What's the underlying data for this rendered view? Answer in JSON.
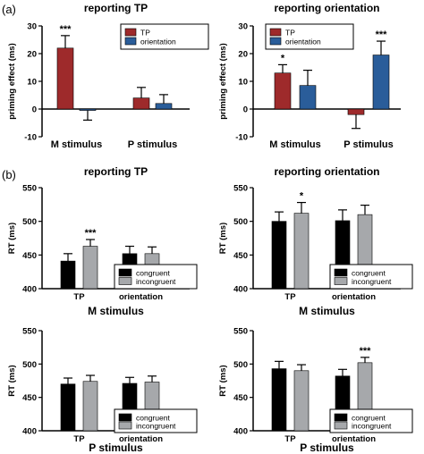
{
  "panel_labels": [
    "(a)",
    "(b)"
  ],
  "colors": {
    "TP": "#9e2a2b",
    "orientation": "#2a5d9a",
    "congruent": "#000000",
    "incongruent": "#a6a8ab",
    "axis": "#000000"
  },
  "chart_data": [
    {
      "id": "a-left",
      "type": "bar",
      "title": "reporting TP",
      "ylabel": "priming effect (ms)",
      "xlabel": "",
      "ylim": [
        -10,
        30
      ],
      "yticks": [
        -10,
        0,
        10,
        20,
        30
      ],
      "categories": [
        "M stimulus",
        "P stimulus"
      ],
      "series": [
        {
          "name": "TP",
          "color_key": "TP",
          "values": [
            22,
            4
          ],
          "errors": [
            4.5,
            3.8
          ]
        },
        {
          "name": "orientation",
          "color_key": "orientation",
          "values": [
            -0.5,
            2
          ],
          "errors": [
            3.5,
            3.2
          ]
        }
      ],
      "annotations": [
        {
          "category": 0,
          "series": 0,
          "text": "***"
        }
      ],
      "legend": "top-right",
      "grid": false
    },
    {
      "id": "a-right",
      "type": "bar",
      "title": "reporting orientation",
      "ylabel": "priming effect (ms)",
      "xlabel": "",
      "ylim": [
        -10,
        30
      ],
      "yticks": [
        -10,
        0,
        10,
        20,
        30
      ],
      "categories": [
        "M stimulus",
        "P stimulus"
      ],
      "series": [
        {
          "name": "TP",
          "color_key": "TP",
          "values": [
            13,
            -2
          ],
          "errors": [
            3,
            5
          ]
        },
        {
          "name": "orientation",
          "color_key": "orientation",
          "values": [
            8.5,
            19.5
          ],
          "errors": [
            5.5,
            5
          ]
        }
      ],
      "annotations": [
        {
          "category": 0,
          "series": 0,
          "text": "*"
        },
        {
          "category": 1,
          "series": 1,
          "text": "***"
        }
      ],
      "legend": "top-left",
      "grid": false
    },
    {
      "id": "b-top-left",
      "type": "bar",
      "title": "reporting TP",
      "ylabel": "RT (ms)",
      "xlabel": "M stimulus",
      "ylim": [
        400,
        550
      ],
      "yticks": [
        400,
        450,
        500,
        550
      ],
      "categories": [
        "TP",
        "orientation"
      ],
      "series": [
        {
          "name": "congruent",
          "color_key": "congruent",
          "values": [
            441,
            452
          ],
          "errors": [
            11,
            11
          ]
        },
        {
          "name": "incongruent",
          "color_key": "incongruent",
          "values": [
            463,
            452
          ],
          "errors": [
            10,
            10
          ]
        }
      ],
      "annotations": [
        {
          "category": 0,
          "series": 1,
          "text": "***"
        }
      ],
      "legend": "bottom-right",
      "grid": false
    },
    {
      "id": "b-top-right",
      "type": "bar",
      "title": "reporting orientation",
      "ylabel": "RT (ms)",
      "xlabel": "M stimulus",
      "ylim": [
        400,
        550
      ],
      "yticks": [
        400,
        450,
        500,
        550
      ],
      "categories": [
        "TP",
        "orientation"
      ],
      "series": [
        {
          "name": "congruent",
          "color_key": "congruent",
          "values": [
            500,
            501
          ],
          "errors": [
            14,
            16
          ]
        },
        {
          "name": "incongruent",
          "color_key": "incongruent",
          "values": [
            512,
            510
          ],
          "errors": [
            16,
            14
          ]
        }
      ],
      "annotations": [
        {
          "category": 0,
          "series": 1,
          "text": "*"
        }
      ],
      "legend": "bottom-right",
      "grid": false
    },
    {
      "id": "b-bottom-left",
      "type": "bar",
      "title": "",
      "ylabel": "RT (ms)",
      "xlabel": "P stimulus",
      "ylim": [
        400,
        550
      ],
      "yticks": [
        400,
        450,
        500,
        550
      ],
      "categories": [
        "TP",
        "orientation"
      ],
      "series": [
        {
          "name": "congruent",
          "color_key": "congruent",
          "values": [
            470,
            471
          ],
          "errors": [
            9,
            9
          ]
        },
        {
          "name": "incongruent",
          "color_key": "incongruent",
          "values": [
            474,
            473
          ],
          "errors": [
            9,
            9
          ]
        }
      ],
      "annotations": [],
      "legend": "bottom-right",
      "grid": false
    },
    {
      "id": "b-bottom-right",
      "type": "bar",
      "title": "",
      "ylabel": "RT (ms)",
      "xlabel": "P stimulus",
      "ylim": [
        400,
        550
      ],
      "yticks": [
        400,
        450,
        500,
        550
      ],
      "categories": [
        "TP",
        "orientation"
      ],
      "series": [
        {
          "name": "congruent",
          "color_key": "congruent",
          "values": [
            493,
            482
          ],
          "errors": [
            11,
            10
          ]
        },
        {
          "name": "incongruent",
          "color_key": "incongruent",
          "values": [
            490,
            502
          ],
          "errors": [
            9,
            8
          ]
        }
      ],
      "annotations": [
        {
          "category": 1,
          "series": 1,
          "text": "***"
        }
      ],
      "legend": "bottom-right",
      "grid": false
    }
  ]
}
